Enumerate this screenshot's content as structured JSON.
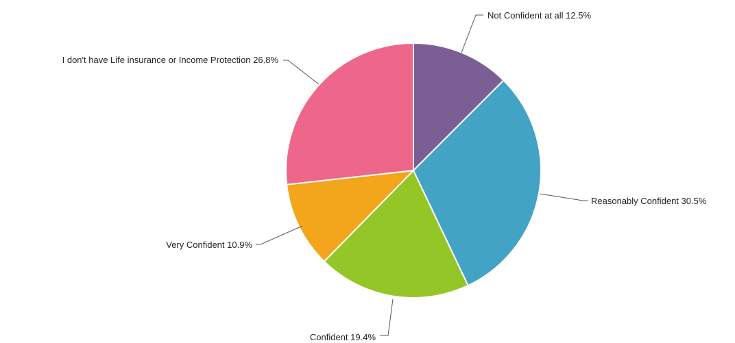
{
  "chart_data": {
    "type": "pie",
    "title": "",
    "slices": [
      {
        "label": "Not Confident at all 12.5%",
        "value": 12.5,
        "color": "#7b5e94"
      },
      {
        "label": "Reasonably Confident 30.5%",
        "value": 30.5,
        "color": "#42a3c4"
      },
      {
        "label": "Confident 19.4%",
        "value": 19.4,
        "color": "#95c628"
      },
      {
        "label": "Very Confident 10.9%",
        "value": 10.9,
        "color": "#f3a51b"
      },
      {
        "label": "I don't have Life insurance or Income Protection 26.8%",
        "value": 26.8,
        "color": "#ee6689"
      }
    ],
    "start_angle": "12 o'clock",
    "direction": "clockwise",
    "legend": "none"
  }
}
